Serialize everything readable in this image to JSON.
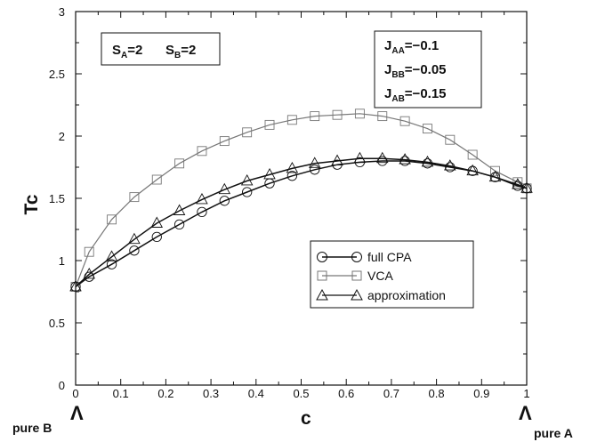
{
  "chart_data": {
    "type": "line",
    "xlabel": "c",
    "ylabel": "Tc",
    "xlim": [
      0,
      1
    ],
    "ylim": [
      0,
      3
    ],
    "x_ticks": [
      "0",
      "0.1",
      "0.2",
      "0.3",
      "0.4",
      "0.5",
      "0.6",
      "0.7",
      "0.8",
      "0.9",
      "1"
    ],
    "y_ticks": [
      "0",
      "0.5",
      "1",
      "1.5",
      "2",
      "2.5",
      "3"
    ],
    "grid": false,
    "legend_placement": "lower-right",
    "series": [
      {
        "name": "full CPA",
        "marker": "circle",
        "color": "#111111",
        "x": [
          0,
          0.03,
          0.08,
          0.13,
          0.18,
          0.23,
          0.28,
          0.33,
          0.38,
          0.43,
          0.48,
          0.53,
          0.58,
          0.63,
          0.68,
          0.73,
          0.78,
          0.83,
          0.88,
          0.93,
          0.98,
          1.0
        ],
        "y": [
          0.79,
          0.87,
          0.97,
          1.08,
          1.19,
          1.29,
          1.39,
          1.48,
          1.55,
          1.62,
          1.68,
          1.73,
          1.77,
          1.79,
          1.8,
          1.8,
          1.78,
          1.75,
          1.72,
          1.67,
          1.6,
          1.58
        ]
      },
      {
        "name": "VCA",
        "marker": "square",
        "color": "#777777",
        "x": [
          0,
          0.03,
          0.08,
          0.13,
          0.18,
          0.23,
          0.28,
          0.33,
          0.38,
          0.43,
          0.48,
          0.53,
          0.58,
          0.63,
          0.68,
          0.73,
          0.78,
          0.83,
          0.88,
          0.93,
          0.98,
          1.0
        ],
        "y": [
          0.79,
          1.07,
          1.33,
          1.51,
          1.65,
          1.78,
          1.88,
          1.96,
          2.03,
          2.09,
          2.13,
          2.16,
          2.17,
          2.18,
          2.16,
          2.12,
          2.06,
          1.97,
          1.85,
          1.72,
          1.63,
          1.58
        ]
      },
      {
        "name": "approximation",
        "marker": "triangle",
        "color": "#111111",
        "x": [
          0,
          0.03,
          0.08,
          0.13,
          0.18,
          0.23,
          0.28,
          0.33,
          0.38,
          0.43,
          0.48,
          0.53,
          0.58,
          0.63,
          0.68,
          0.73,
          0.78,
          0.83,
          0.88,
          0.93,
          0.98,
          1.0
        ],
        "y": [
          0.79,
          0.89,
          1.03,
          1.17,
          1.3,
          1.4,
          1.49,
          1.57,
          1.64,
          1.69,
          1.74,
          1.78,
          1.8,
          1.82,
          1.82,
          1.81,
          1.79,
          1.76,
          1.72,
          1.67,
          1.61,
          1.58
        ]
      }
    ],
    "annotations": {
      "spin_box": {
        "s_a": "S",
        "s_a_sub": "A",
        "s_a_val": "=2",
        "s_b": "S",
        "s_b_sub": "B",
        "s_b_val": "=2"
      },
      "coupling_box": [
        {
          "j": "J",
          "sub": "AA",
          "val": "=−0.1"
        },
        {
          "j": "J",
          "sub": "BB",
          "val": "=−0.05"
        },
        {
          "j": "J",
          "sub": "AB",
          "val": "=−0.15"
        }
      ],
      "left_marker": "Λ",
      "right_marker": "Λ",
      "left_label": "pure B",
      "right_label": "pure A"
    }
  }
}
